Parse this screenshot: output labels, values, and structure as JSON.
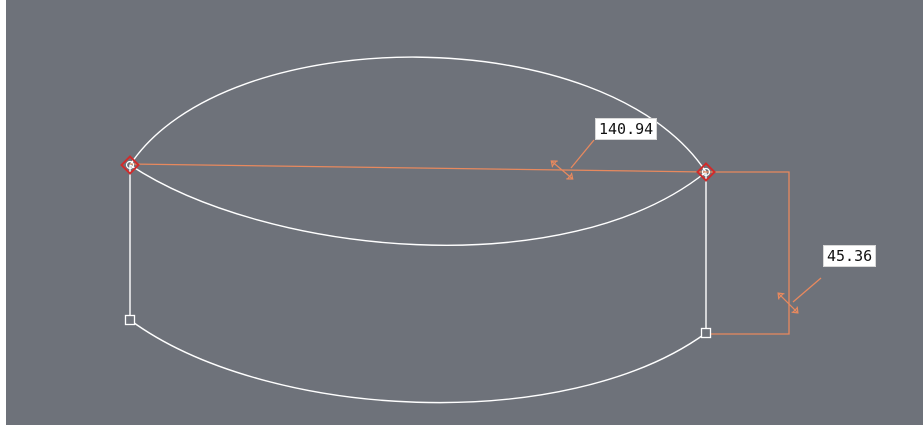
{
  "dimensions": {
    "horizontal": {
      "value": "140.94"
    },
    "vertical": {
      "value": "45.36"
    }
  },
  "colors": {
    "background": "#6e727a",
    "sketch_curve": "#ffffff",
    "dimension": "#e8895e",
    "selected_vertex": "#d12b2b"
  },
  "icons": {
    "dimension_arrow": "double-arrow-icon",
    "selected_vertex": "diamond-vertex-icon",
    "unselected_vertex": "square-vertex-icon"
  }
}
